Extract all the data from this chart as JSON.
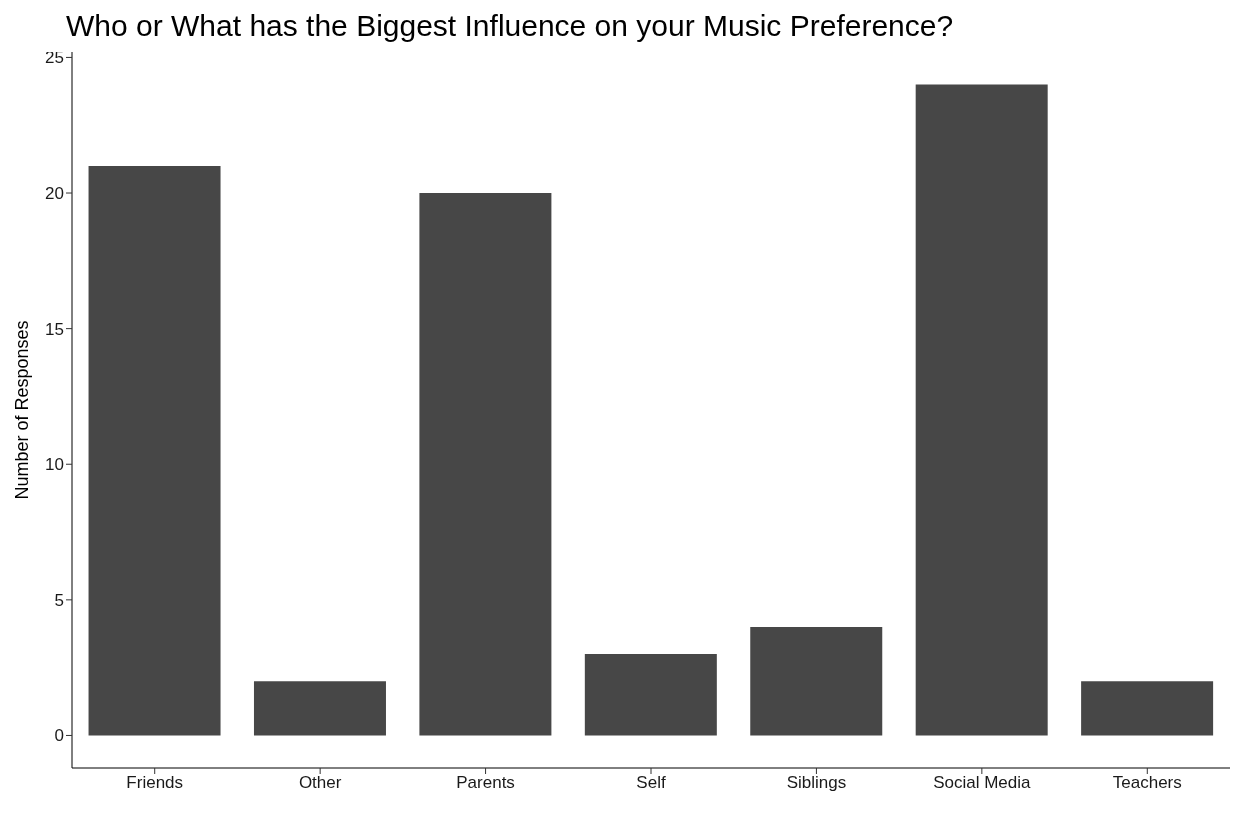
{
  "chart_data": {
    "type": "bar",
    "title": "Who or What has the Biggest Influence on your Music Preference?",
    "ylabel": "Number of Responses",
    "categories": [
      "Friends",
      "Other",
      "Parents",
      "Self",
      "Siblings",
      "Social Media",
      "Teachers"
    ],
    "values": [
      21,
      2,
      20,
      3,
      4,
      24,
      2
    ],
    "color": "#474747",
    "ylim": [
      -1.2,
      25.2
    ],
    "yticks": [
      0,
      5,
      10,
      15,
      20,
      25
    ],
    "grid": false,
    "legend": false
  }
}
